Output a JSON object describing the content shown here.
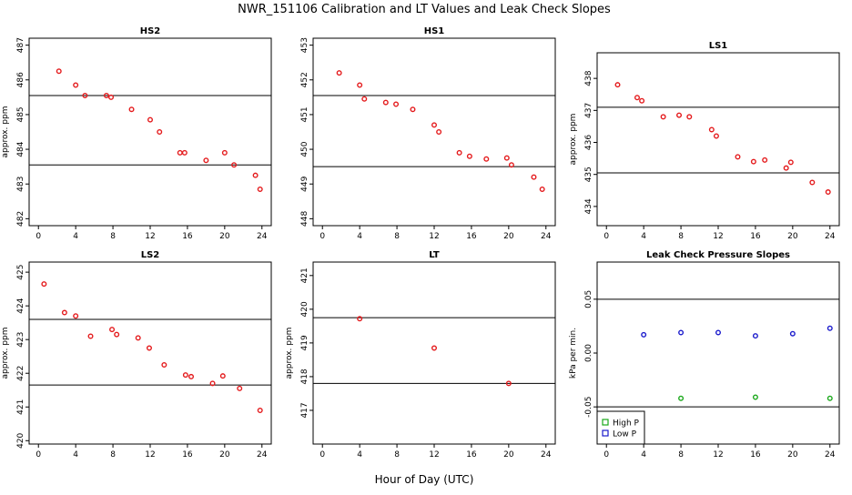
{
  "title": "NWR_151106  Calibration and LT Values and Leak Check Slopes",
  "xlabel": "Hour of Day (UTC)",
  "colors": {
    "red": "#e41a1c",
    "green": "#1aa81a",
    "blue": "#1a1acc",
    "line": "#000000"
  },
  "chart_data": [
    {
      "type": "scatter",
      "title": "HS2",
      "ylabel": "approx. ppm",
      "xlim": [
        -1,
        25
      ],
      "ylim": [
        481.8,
        487.2
      ],
      "xticks": [
        0,
        4,
        8,
        12,
        16,
        20,
        24
      ],
      "yticks": [
        482,
        483,
        484,
        485,
        486,
        487
      ],
      "hlines": [
        485.55,
        483.55
      ],
      "series": [
        {
          "marker": "red",
          "x": [
            2.2,
            4.0,
            5.0,
            7.3,
            7.8,
            10.0,
            12.0,
            13.0,
            15.2,
            15.7,
            18.0,
            20.0,
            21.0,
            23.3,
            23.8
          ],
          "y": [
            486.25,
            485.85,
            485.55,
            485.55,
            485.5,
            485.15,
            484.85,
            484.5,
            483.9,
            483.9,
            483.68,
            483.9,
            483.55,
            483.25,
            482.85
          ]
        }
      ]
    },
    {
      "type": "scatter",
      "title": "HS1",
      "ylabel": "",
      "xlim": [
        -1,
        25
      ],
      "ylim": [
        447.8,
        453.2
      ],
      "xticks": [
        0,
        4,
        8,
        12,
        16,
        20,
        24
      ],
      "yticks": [
        448,
        449,
        450,
        451,
        452,
        453
      ],
      "hlines": [
        451.55,
        449.5
      ],
      "series": [
        {
          "marker": "red",
          "x": [
            1.8,
            4.0,
            4.5,
            6.8,
            7.9,
            9.7,
            12.0,
            12.5,
            14.7,
            15.8,
            17.6,
            19.8,
            20.3,
            22.7,
            23.6
          ],
          "y": [
            452.2,
            451.85,
            451.45,
            451.35,
            451.3,
            451.15,
            450.7,
            450.5,
            449.9,
            449.8,
            449.72,
            449.75,
            449.55,
            449.2,
            448.85
          ]
        }
      ]
    },
    {
      "type": "scatter",
      "title": "LS1",
      "ylabel": "approx. ppm",
      "xlim": [
        -1,
        25
      ],
      "ylim": [
        433.4,
        438.8
      ],
      "xticks": [
        0,
        4,
        8,
        12,
        16,
        20,
        24
      ],
      "yticks": [
        434,
        435,
        436,
        437,
        438
      ],
      "hlines": [
        437.1,
        435.05
      ],
      "series": [
        {
          "marker": "red",
          "x": [
            1.2,
            3.3,
            3.8,
            6.1,
            7.8,
            8.9,
            11.3,
            11.8,
            14.1,
            15.8,
            17.0,
            19.3,
            19.8,
            22.1,
            23.8
          ],
          "y": [
            437.8,
            437.4,
            437.3,
            436.8,
            436.85,
            436.8,
            436.4,
            436.2,
            435.55,
            435.4,
            435.45,
            435.2,
            435.38,
            434.75,
            434.45
          ]
        }
      ]
    },
    {
      "type": "scatter",
      "title": "LS2",
      "ylabel": "approx. ppm",
      "xlim": [
        -1,
        25
      ],
      "ylim": [
        419.9,
        425.3
      ],
      "xticks": [
        0,
        4,
        8,
        12,
        16,
        20,
        24
      ],
      "yticks": [
        420,
        421,
        422,
        423,
        424,
        425
      ],
      "hlines": [
        423.6,
        421.65
      ],
      "series": [
        {
          "marker": "red",
          "x": [
            0.6,
            2.8,
            4.0,
            5.6,
            7.9,
            8.4,
            10.7,
            11.9,
            13.5,
            15.8,
            16.4,
            18.7,
            19.8,
            21.6,
            23.8
          ],
          "y": [
            424.65,
            423.8,
            423.7,
            423.1,
            423.3,
            423.15,
            423.05,
            422.75,
            422.25,
            421.95,
            421.9,
            421.7,
            421.92,
            421.55,
            420.9
          ]
        }
      ]
    },
    {
      "type": "scatter",
      "title": "LT",
      "ylabel": "approx. ppm",
      "xlim": [
        -1,
        25
      ],
      "ylim": [
        416.0,
        421.4
      ],
      "xticks": [
        0,
        4,
        8,
        12,
        16,
        20,
        24
      ],
      "yticks": [
        417,
        418,
        419,
        420,
        421
      ],
      "hlines": [
        419.75,
        417.8
      ],
      "series": [
        {
          "marker": "red",
          "x": [
            4.0,
            12.0,
            20.0
          ],
          "y": [
            419.72,
            418.85,
            417.8
          ]
        }
      ]
    },
    {
      "type": "scatter",
      "title": "Leak Check Pressure Slopes",
      "ylabel": "kPa per min.",
      "xlim": [
        -1,
        25
      ],
      "ylim": [
        -0.0845,
        0.0845
      ],
      "xticks": [
        0,
        4,
        8,
        12,
        16,
        20,
        24
      ],
      "yticks": [
        -0.05,
        0.0,
        0.05
      ],
      "ytick_labels": [
        "-0.05",
        "0.00",
        "0.05"
      ],
      "hlines": [
        0.05,
        -0.05
      ],
      "legend": {
        "position": "bottom-left",
        "entries": [
          "High P",
          "Low P"
        ]
      },
      "series": [
        {
          "name": "High P",
          "marker": "green",
          "x": [
            8.0,
            16.0,
            24.0
          ],
          "y": [
            -0.042,
            -0.041,
            -0.042
          ]
        },
        {
          "name": "Low P",
          "marker": "blue",
          "x": [
            4.0,
            8.0,
            12.0,
            16.0,
            20.0,
            24.0
          ],
          "y": [
            0.017,
            0.019,
            0.019,
            0.016,
            0.018,
            0.023
          ]
        }
      ]
    }
  ]
}
